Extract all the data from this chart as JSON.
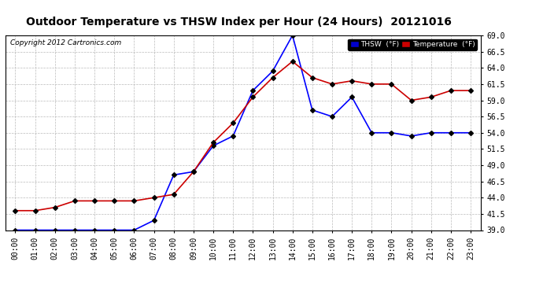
{
  "title": "Outdoor Temperature vs THSW Index per Hour (24 Hours)  20121016",
  "copyright": "Copyright 2012 Cartronics.com",
  "hours": [
    0,
    1,
    2,
    3,
    4,
    5,
    6,
    7,
    8,
    9,
    10,
    11,
    12,
    13,
    14,
    15,
    16,
    17,
    18,
    19,
    20,
    21,
    22,
    23
  ],
  "thsw": [
    39.0,
    39.0,
    39.0,
    39.0,
    39.0,
    39.0,
    39.0,
    40.5,
    47.5,
    48.0,
    52.0,
    53.5,
    60.5,
    63.5,
    69.0,
    57.5,
    56.5,
    59.5,
    54.0,
    54.0,
    53.5,
    54.0,
    54.0,
    54.0
  ],
  "temp": [
    42.0,
    42.0,
    42.5,
    43.5,
    43.5,
    43.5,
    43.5,
    44.0,
    44.5,
    48.0,
    52.5,
    55.5,
    59.5,
    62.5,
    65.0,
    62.5,
    61.5,
    62.0,
    61.5,
    61.5,
    59.0,
    59.5,
    60.5,
    60.5
  ],
  "thsw_color": "#0000ff",
  "temp_color": "#cc0000",
  "background_color": "#ffffff",
  "grid_color": "#bbbbbb",
  "ylim": [
    39.0,
    69.0
  ],
  "yticks": [
    39.0,
    41.5,
    44.0,
    46.5,
    49.0,
    51.5,
    54.0,
    56.5,
    59.0,
    61.5,
    64.0,
    66.5,
    69.0
  ],
  "legend_thsw_bg": "#0000cc",
  "legend_temp_bg": "#cc0000",
  "marker": "D",
  "markersize": 3,
  "linewidth": 1.2,
  "title_fontsize": 10,
  "tick_fontsize": 7,
  "copyright_fontsize": 6.5
}
